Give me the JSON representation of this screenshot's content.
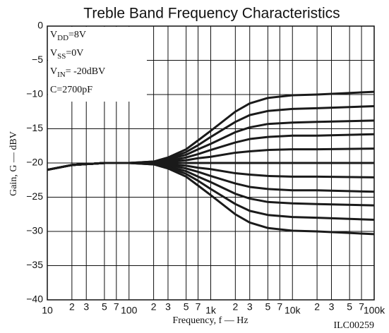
{
  "chart_data": {
    "type": "line",
    "title": "Treble Band Frequency Characteristics",
    "x_label": "Frequency, f — Hz",
    "y_label": "Gain, G — dBV",
    "footnote": "ILC00259",
    "annotations": [
      {
        "main": "V",
        "sub": "DD",
        "rest": "=8V"
      },
      {
        "main": "V",
        "sub": "SS",
        "rest": "=0V"
      },
      {
        "main": "V",
        "sub": "IN",
        "rest": "= -20dBV"
      },
      {
        "main": "C=2700pF"
      }
    ],
    "log_x": true,
    "grid": true,
    "color": "#1a1a1a",
    "xlim": [
      10,
      100000
    ],
    "ylim": [
      -40,
      0
    ],
    "xticks": [
      10,
      {
        "value": 20,
        "label": "2"
      },
      {
        "value": 30,
        "label": "3"
      },
      {
        "value": 50,
        "label": "5"
      },
      {
        "value": 70,
        "label": "7"
      },
      100,
      {
        "value": 200,
        "label": "2"
      },
      {
        "value": 300,
        "label": "3"
      },
      {
        "value": 500,
        "label": "5"
      },
      {
        "value": 700,
        "label": "7"
      },
      {
        "value": 1000,
        "label": "1k"
      },
      {
        "value": 2000,
        "label": "2"
      },
      {
        "value": 3000,
        "label": "3"
      },
      {
        "value": 5000,
        "label": "5"
      },
      {
        "value": 7000,
        "label": "7"
      },
      {
        "value": 10000,
        "label": "10k"
      },
      {
        "value": 20000,
        "label": "2"
      },
      {
        "value": 30000,
        "label": "3"
      },
      {
        "value": 50000,
        "label": "5"
      },
      {
        "value": 70000,
        "label": "7"
      },
      {
        "value": 100000,
        "label": "100k"
      }
    ],
    "yticks": [
      0,
      {
        "value": -5,
        "label": "−5"
      },
      {
        "value": -10,
        "label": "−10"
      },
      {
        "value": -15,
        "label": "−15"
      },
      {
        "value": -20,
        "label": "−20"
      },
      {
        "value": -25,
        "label": "−25"
      },
      {
        "value": -30,
        "label": "−30"
      },
      {
        "value": -35,
        "label": "−35"
      },
      {
        "value": -40,
        "label": "−40"
      }
    ],
    "x": [
      10,
      20,
      50,
      100,
      200,
      300,
      500,
      700,
      1000,
      2000,
      3000,
      5000,
      10000,
      20000,
      100000
    ],
    "series": [
      {
        "values": [
          -21,
          -20.3,
          -20,
          -20,
          -19.8,
          -19.2,
          -18,
          -16.7,
          -15.3,
          -12.5,
          -11.3,
          -10.5,
          -10.1,
          -10,
          -9.6
        ]
      },
      {
        "values": [
          -21,
          -20.3,
          -20,
          -20,
          -19.8,
          -19.4,
          -18.4,
          -17.4,
          -16.2,
          -14,
          -13,
          -12.4,
          -12.1,
          -12,
          -11.7
        ]
      },
      {
        "values": [
          -21,
          -20.3,
          -20,
          -20,
          -19.9,
          -19.5,
          -18.8,
          -18,
          -17.2,
          -15.5,
          -14.8,
          -14.3,
          -14.1,
          -14,
          -13.8
        ]
      },
      {
        "values": [
          -21,
          -20.3,
          -20,
          -20,
          -19.9,
          -19.7,
          -19.2,
          -18.7,
          -18.1,
          -17,
          -16.5,
          -16.2,
          -16,
          -16,
          -15.8
        ]
      },
      {
        "values": [
          -21,
          -20.3,
          -20,
          -20,
          -20,
          -19.8,
          -19.6,
          -19.3,
          -19.1,
          -18.5,
          -18.3,
          -18.1,
          -18,
          -18,
          -17.9
        ]
      },
      {
        "values": [
          -21,
          -20.3,
          -20,
          -20,
          -20,
          -20,
          -20,
          -20,
          -20,
          -20,
          -20,
          -20,
          -20,
          -20,
          -20
        ]
      },
      {
        "values": [
          -21,
          -20.3,
          -20,
          -20,
          -20,
          -20.2,
          -20.4,
          -20.7,
          -20.9,
          -21.5,
          -21.7,
          -21.9,
          -22,
          -22,
          -22.1
        ]
      },
      {
        "values": [
          -21,
          -20.3,
          -20,
          -20,
          -20.1,
          -20.3,
          -20.8,
          -21.3,
          -21.9,
          -23,
          -23.5,
          -23.8,
          -24,
          -24,
          -24.2
        ]
      },
      {
        "values": [
          -21,
          -20.3,
          -20,
          -20,
          -20.1,
          -20.5,
          -21.2,
          -22,
          -22.8,
          -24.5,
          -25.2,
          -25.7,
          -25.9,
          -26,
          -26.2
        ]
      },
      {
        "values": [
          -21,
          -20.3,
          -20,
          -20,
          -20.2,
          -20.6,
          -21.6,
          -22.6,
          -23.8,
          -26,
          -27,
          -27.6,
          -27.9,
          -28,
          -28.3
        ]
      },
      {
        "values": [
          -21,
          -20.3,
          -20,
          -20,
          -20.2,
          -20.8,
          -22,
          -23.3,
          -24.7,
          -27.5,
          -28.7,
          -29.5,
          -29.9,
          -30,
          -30.4
        ]
      }
    ]
  }
}
